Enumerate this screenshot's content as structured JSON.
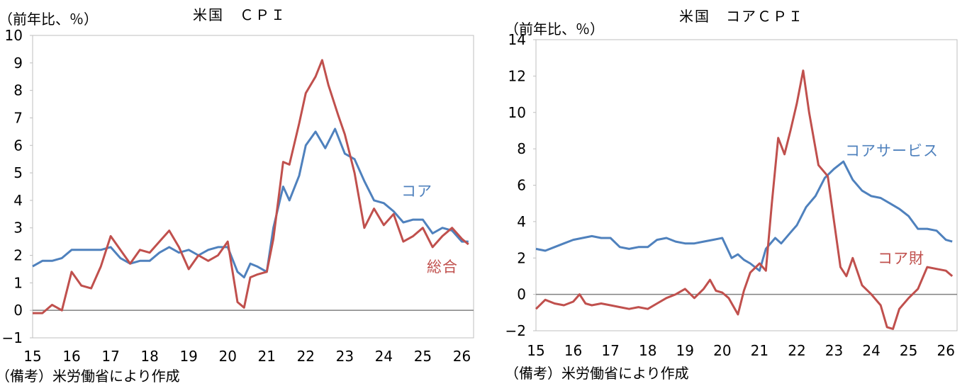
{
  "chart_data": [
    {
      "type": "line",
      "title": "米国　ＣＰＩ",
      "ylabel": "（前年比、％）",
      "note": "（備考）米労働省により作成",
      "ylim": [
        -1,
        10
      ],
      "yticks": [
        "−1",
        "0",
        "1",
        "2",
        "3",
        "4",
        "5",
        "6",
        "7",
        "8",
        "9",
        "10"
      ],
      "xlim": [
        2015.0,
        2026.3
      ],
      "xticks": [
        "15",
        "16",
        "17",
        "18",
        "19",
        "20",
        "21",
        "22",
        "23",
        "24",
        "25",
        "26"
      ],
      "series": [
        {
          "name": "コア",
          "color": "#4f81bd",
          "values": [
            [
              2015.0,
              1.6
            ],
            [
              2015.25,
              1.8
            ],
            [
              2015.5,
              1.8
            ],
            [
              2015.75,
              1.9
            ],
            [
              2016.0,
              2.2
            ],
            [
              2016.25,
              2.2
            ],
            [
              2016.5,
              2.2
            ],
            [
              2016.75,
              2.2
            ],
            [
              2017.0,
              2.3
            ],
            [
              2017.25,
              1.9
            ],
            [
              2017.5,
              1.7
            ],
            [
              2017.75,
              1.8
            ],
            [
              2018.0,
              1.8
            ],
            [
              2018.25,
              2.1
            ],
            [
              2018.5,
              2.3
            ],
            [
              2018.75,
              2.1
            ],
            [
              2019.0,
              2.2
            ],
            [
              2019.25,
              2.0
            ],
            [
              2019.5,
              2.2
            ],
            [
              2019.75,
              2.3
            ],
            [
              2020.0,
              2.3
            ],
            [
              2020.25,
              1.4
            ],
            [
              2020.42,
              1.2
            ],
            [
              2020.58,
              1.7
            ],
            [
              2020.75,
              1.6
            ],
            [
              2021.0,
              1.4
            ],
            [
              2021.17,
              3.0
            ],
            [
              2021.42,
              4.5
            ],
            [
              2021.58,
              4.0
            ],
            [
              2021.83,
              4.9
            ],
            [
              2022.0,
              6.0
            ],
            [
              2022.25,
              6.5
            ],
            [
              2022.5,
              5.9
            ],
            [
              2022.75,
              6.6
            ],
            [
              2023.0,
              5.7
            ],
            [
              2023.25,
              5.5
            ],
            [
              2023.5,
              4.7
            ],
            [
              2023.75,
              4.0
            ],
            [
              2024.0,
              3.9
            ],
            [
              2024.25,
              3.6
            ],
            [
              2024.5,
              3.2
            ],
            [
              2024.75,
              3.3
            ],
            [
              2025.0,
              3.3
            ],
            [
              2025.25,
              2.8
            ],
            [
              2025.5,
              3.0
            ],
            [
              2025.75,
              2.9
            ],
            [
              2026.0,
              2.5
            ],
            [
              2026.17,
              2.5
            ]
          ]
        },
        {
          "name": "総合",
          "color": "#c0504d",
          "values": [
            [
              2015.0,
              -0.1
            ],
            [
              2015.25,
              -0.1
            ],
            [
              2015.5,
              0.2
            ],
            [
              2015.75,
              0.0
            ],
            [
              2016.0,
              1.4
            ],
            [
              2016.25,
              0.9
            ],
            [
              2016.5,
              0.8
            ],
            [
              2016.75,
              1.6
            ],
            [
              2017.0,
              2.7
            ],
            [
              2017.25,
              2.2
            ],
            [
              2017.5,
              1.7
            ],
            [
              2017.75,
              2.2
            ],
            [
              2018.0,
              2.1
            ],
            [
              2018.25,
              2.5
            ],
            [
              2018.5,
              2.9
            ],
            [
              2018.75,
              2.3
            ],
            [
              2019.0,
              1.5
            ],
            [
              2019.25,
              2.0
            ],
            [
              2019.5,
              1.8
            ],
            [
              2019.75,
              2.0
            ],
            [
              2020.0,
              2.5
            ],
            [
              2020.25,
              0.3
            ],
            [
              2020.42,
              0.1
            ],
            [
              2020.58,
              1.2
            ],
            [
              2020.75,
              1.3
            ],
            [
              2021.0,
              1.4
            ],
            [
              2021.17,
              2.6
            ],
            [
              2021.42,
              5.4
            ],
            [
              2021.58,
              5.3
            ],
            [
              2021.83,
              6.8
            ],
            [
              2022.0,
              7.9
            ],
            [
              2022.25,
              8.5
            ],
            [
              2022.42,
              9.1
            ],
            [
              2022.58,
              8.2
            ],
            [
              2022.83,
              7.1
            ],
            [
              2023.0,
              6.4
            ],
            [
              2023.25,
              5.0
            ],
            [
              2023.5,
              3.0
            ],
            [
              2023.75,
              3.7
            ],
            [
              2024.0,
              3.1
            ],
            [
              2024.25,
              3.5
            ],
            [
              2024.5,
              2.5
            ],
            [
              2024.75,
              2.7
            ],
            [
              2025.0,
              3.0
            ],
            [
              2025.25,
              2.3
            ],
            [
              2025.5,
              2.7
            ],
            [
              2025.75,
              3.0
            ],
            [
              2026.0,
              2.6
            ],
            [
              2026.17,
              2.4
            ]
          ]
        }
      ]
    },
    {
      "type": "line",
      "title": "米国　コアＣＰＩ",
      "ylabel": "（前年比、％）",
      "note": "（備考）米労働省により作成",
      "ylim": [
        -2,
        14
      ],
      "yticks": [
        "−2",
        "0",
        "2",
        "4",
        "6",
        "8",
        "10",
        "12",
        "14"
      ],
      "xlim": [
        2015.0,
        2026.3
      ],
      "xticks": [
        "15",
        "16",
        "17",
        "18",
        "19",
        "20",
        "21",
        "22",
        "23",
        "24",
        "25",
        "26"
      ],
      "series": [
        {
          "name": "コアサービス",
          "color": "#4f81bd",
          "values": [
            [
              2015.0,
              2.5
            ],
            [
              2015.25,
              2.4
            ],
            [
              2015.5,
              2.6
            ],
            [
              2015.75,
              2.8
            ],
            [
              2016.0,
              3.0
            ],
            [
              2016.25,
              3.1
            ],
            [
              2016.5,
              3.2
            ],
            [
              2016.75,
              3.1
            ],
            [
              2017.0,
              3.1
            ],
            [
              2017.25,
              2.6
            ],
            [
              2017.5,
              2.5
            ],
            [
              2017.75,
              2.6
            ],
            [
              2018.0,
              2.6
            ],
            [
              2018.25,
              3.0
            ],
            [
              2018.5,
              3.1
            ],
            [
              2018.75,
              2.9
            ],
            [
              2019.0,
              2.8
            ],
            [
              2019.25,
              2.8
            ],
            [
              2019.5,
              2.9
            ],
            [
              2019.75,
              3.0
            ],
            [
              2020.0,
              3.1
            ],
            [
              2020.25,
              2.0
            ],
            [
              2020.42,
              2.2
            ],
            [
              2020.58,
              1.9
            ],
            [
              2020.75,
              1.7
            ],
            [
              2021.0,
              1.3
            ],
            [
              2021.17,
              2.5
            ],
            [
              2021.42,
              3.1
            ],
            [
              2021.58,
              2.8
            ],
            [
              2021.83,
              3.4
            ],
            [
              2022.0,
              3.8
            ],
            [
              2022.25,
              4.8
            ],
            [
              2022.5,
              5.4
            ],
            [
              2022.75,
              6.4
            ],
            [
              2023.0,
              6.9
            ],
            [
              2023.25,
              7.3
            ],
            [
              2023.5,
              6.3
            ],
            [
              2023.75,
              5.7
            ],
            [
              2024.0,
              5.4
            ],
            [
              2024.25,
              5.3
            ],
            [
              2024.5,
              5.0
            ],
            [
              2024.75,
              4.7
            ],
            [
              2025.0,
              4.3
            ],
            [
              2025.25,
              3.6
            ],
            [
              2025.5,
              3.6
            ],
            [
              2025.75,
              3.5
            ],
            [
              2026.0,
              3.0
            ],
            [
              2026.17,
              2.9
            ]
          ]
        },
        {
          "name": "コア財",
          "color": "#c0504d",
          "values": [
            [
              2015.0,
              -0.8
            ],
            [
              2015.25,
              -0.3
            ],
            [
              2015.5,
              -0.5
            ],
            [
              2015.75,
              -0.6
            ],
            [
              2016.0,
              -0.4
            ],
            [
              2016.17,
              0.0
            ],
            [
              2016.33,
              -0.5
            ],
            [
              2016.5,
              -0.6
            ],
            [
              2016.75,
              -0.5
            ],
            [
              2017.0,
              -0.6
            ],
            [
              2017.25,
              -0.7
            ],
            [
              2017.5,
              -0.8
            ],
            [
              2017.75,
              -0.7
            ],
            [
              2018.0,
              -0.8
            ],
            [
              2018.25,
              -0.5
            ],
            [
              2018.5,
              -0.2
            ],
            [
              2018.75,
              0.0
            ],
            [
              2019.0,
              0.3
            ],
            [
              2019.25,
              -0.2
            ],
            [
              2019.5,
              0.3
            ],
            [
              2019.67,
              0.8
            ],
            [
              2019.83,
              0.2
            ],
            [
              2020.0,
              0.1
            ],
            [
              2020.17,
              -0.2
            ],
            [
              2020.42,
              -1.1
            ],
            [
              2020.58,
              0.2
            ],
            [
              2020.75,
              1.2
            ],
            [
              2021.0,
              1.7
            ],
            [
              2021.17,
              1.3
            ],
            [
              2021.33,
              5.0
            ],
            [
              2021.5,
              8.6
            ],
            [
              2021.67,
              7.7
            ],
            [
              2021.83,
              9.0
            ],
            [
              2022.0,
              10.5
            ],
            [
              2022.17,
              12.3
            ],
            [
              2022.33,
              10.0
            ],
            [
              2022.58,
              7.1
            ],
            [
              2022.83,
              6.5
            ],
            [
              2023.0,
              4.0
            ],
            [
              2023.17,
              1.5
            ],
            [
              2023.33,
              1.0
            ],
            [
              2023.5,
              2.0
            ],
            [
              2023.75,
              0.5
            ],
            [
              2024.0,
              0.0
            ],
            [
              2024.25,
              -0.6
            ],
            [
              2024.42,
              -1.8
            ],
            [
              2024.58,
              -1.9
            ],
            [
              2024.75,
              -0.8
            ],
            [
              2025.0,
              -0.2
            ],
            [
              2025.25,
              0.3
            ],
            [
              2025.5,
              1.5
            ],
            [
              2025.75,
              1.4
            ],
            [
              2026.0,
              1.3
            ],
            [
              2026.17,
              1.0
            ]
          ]
        }
      ]
    }
  ]
}
